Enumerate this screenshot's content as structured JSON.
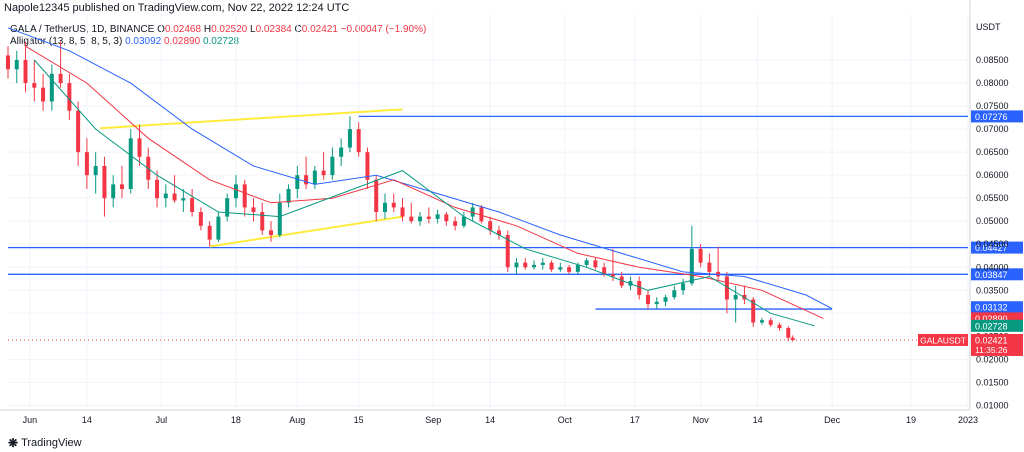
{
  "header": {
    "publisher": "Napole12345 published on TradingView.com, Nov 22, 2022 12:24 UTC"
  },
  "legend": {
    "symbol": "GALA / TetherUS, 1D, BINANCE",
    "o_label": "O",
    "o": "0.02468",
    "h_label": "H",
    "h": "0.02520",
    "l_label": "L",
    "l": "0.02384",
    "c_label": "C",
    "c": "0.02421",
    "change": "−0.00047 (−1.90%)",
    "indicator": "Alligator (13, 8, 5, 8, 5, 3)",
    "jaw": "0.03092",
    "teeth": "0.02890",
    "lips": "0.02728"
  },
  "footer": {
    "brand": "TradingView"
  },
  "chart_data": {
    "type": "candlestick",
    "currency": "USDT",
    "ylim": [
      0.009,
      0.095
    ],
    "y_ticks": [
      "0.08500",
      "0.08000",
      "0.07500",
      "0.07000",
      "0.06500",
      "0.06000",
      "0.05500",
      "0.05000",
      "0.04500",
      "0.04000",
      "0.03500",
      "0.03000",
      "0.02500",
      "0.02000",
      "0.01500",
      "0.01000"
    ],
    "y_tick_values": [
      0.085,
      0.08,
      0.075,
      0.07,
      0.065,
      0.06,
      0.055,
      0.05,
      0.045,
      0.04,
      0.035,
      0.03,
      0.025,
      0.02,
      0.015,
      0.01
    ],
    "x_ticks": [
      "Jun",
      "14",
      "Jul",
      "18",
      "Aug",
      "15",
      "Sep",
      "14",
      "Oct",
      "17",
      "Nov",
      "14",
      "Dec",
      "19",
      "2023"
    ],
    "x_tick_dates": [
      "2022-06-01",
      "2022-06-14",
      "2022-07-01",
      "2022-07-18",
      "2022-08-01",
      "2022-08-15",
      "2022-09-01",
      "2022-09-14",
      "2022-10-01",
      "2022-10-17",
      "2022-11-01",
      "2022-11-14",
      "2022-12-01",
      "2022-12-19",
      "2023-01-01"
    ],
    "x_range": [
      "2022-05-27",
      "2023-01-01"
    ],
    "horizontal_levels": [
      {
        "price": 0.07276,
        "label": "0.07276",
        "from": "2022-08-15",
        "color": "#2962ff"
      },
      {
        "price": 0.04427,
        "label": "0.04427",
        "from": "2022-05-27",
        "color": "#2962ff"
      },
      {
        "price": 0.03847,
        "label": "0.03847",
        "from": "2022-05-27",
        "color": "#2962ff"
      },
      {
        "price": 0.03092,
        "label": "0.03092",
        "from": "2022-10-08",
        "to": "2022-12-01",
        "color": "#2962ff"
      }
    ],
    "trendlines": [
      {
        "from": [
          "2022-06-17",
          0.0702
        ],
        "to": [
          "2022-08-25",
          0.0743
        ],
        "color": "#ffeb3b"
      },
      {
        "from": [
          "2022-07-12",
          0.0445
        ],
        "to": [
          "2022-08-25",
          0.051
        ],
        "color": "#ffeb3b"
      }
    ],
    "price_labels": [
      {
        "label": "0.03132",
        "price": 0.03132,
        "color": "#2962ff"
      },
      {
        "label": "0.03092",
        "price": 0.03092,
        "color": "#2962ff"
      },
      {
        "label": "0.02890",
        "price": 0.0289,
        "color": "#f23645"
      },
      {
        "label": "0.02728",
        "price": 0.02728,
        "color": "#089981"
      },
      {
        "label": "0.02421",
        "price": 0.02421,
        "color": "#f23645"
      }
    ],
    "last_price_tag": {
      "symbol": "GALAUSDT",
      "price": "0.02421",
      "countdown": "11:35:26"
    },
    "jaw_color": "#2962ff",
    "teeth_color": "#f23645",
    "lips_color": "#089981",
    "up_color": "#089981",
    "down_color": "#f23645",
    "ohlc": [
      [
        "2022-05-27",
        0.086,
        0.088,
        0.081,
        0.083
      ],
      [
        "2022-05-29",
        0.083,
        0.087,
        0.08,
        0.085
      ],
      [
        "2022-05-31",
        0.085,
        0.089,
        0.078,
        0.08
      ],
      [
        "2022-06-02",
        0.08,
        0.085,
        0.076,
        0.079
      ],
      [
        "2022-06-04",
        0.079,
        0.082,
        0.074,
        0.076
      ],
      [
        "2022-06-06",
        0.076,
        0.084,
        0.074,
        0.082
      ],
      [
        "2022-06-08",
        0.082,
        0.089,
        0.079,
        0.08
      ],
      [
        "2022-06-10",
        0.08,
        0.082,
        0.072,
        0.074
      ],
      [
        "2022-06-12",
        0.074,
        0.076,
        0.062,
        0.065
      ],
      [
        "2022-06-14",
        0.065,
        0.068,
        0.057,
        0.06
      ],
      [
        "2022-06-16",
        0.06,
        0.065,
        0.056,
        0.062
      ],
      [
        "2022-06-18",
        0.062,
        0.064,
        0.051,
        0.055
      ],
      [
        "2022-06-20",
        0.055,
        0.06,
        0.053,
        0.058
      ],
      [
        "2022-06-22",
        0.058,
        0.062,
        0.055,
        0.057
      ],
      [
        "2022-06-24",
        0.057,
        0.07,
        0.056,
        0.068
      ],
      [
        "2022-06-26",
        0.068,
        0.071,
        0.062,
        0.064
      ],
      [
        "2022-06-28",
        0.064,
        0.066,
        0.057,
        0.059
      ],
      [
        "2022-06-30",
        0.059,
        0.061,
        0.053,
        0.055
      ],
      [
        "2022-07-02",
        0.055,
        0.058,
        0.053,
        0.056
      ],
      [
        "2022-07-04",
        0.056,
        0.06,
        0.054,
        0.0545
      ],
      [
        "2022-07-06",
        0.0545,
        0.057,
        0.052,
        0.055
      ],
      [
        "2022-07-08",
        0.055,
        0.057,
        0.051,
        0.052
      ],
      [
        "2022-07-10",
        0.052,
        0.053,
        0.048,
        0.049
      ],
      [
        "2022-07-12",
        0.049,
        0.05,
        0.0445,
        0.046
      ],
      [
        "2022-07-14",
        0.046,
        0.052,
        0.0455,
        0.051
      ],
      [
        "2022-07-16",
        0.051,
        0.056,
        0.05,
        0.055
      ],
      [
        "2022-07-18",
        0.055,
        0.06,
        0.053,
        0.058
      ],
      [
        "2022-07-20",
        0.058,
        0.059,
        0.051,
        0.053
      ],
      [
        "2022-07-22",
        0.053,
        0.055,
        0.05,
        0.052
      ],
      [
        "2022-07-24",
        0.052,
        0.054,
        0.047,
        0.048
      ],
      [
        "2022-07-26",
        0.048,
        0.05,
        0.0455,
        0.047
      ],
      [
        "2022-07-28",
        0.047,
        0.056,
        0.0465,
        0.054
      ],
      [
        "2022-07-30",
        0.054,
        0.058,
        0.053,
        0.057
      ],
      [
        "2022-08-01",
        0.057,
        0.062,
        0.055,
        0.06
      ],
      [
        "2022-08-03",
        0.06,
        0.064,
        0.057,
        0.058
      ],
      [
        "2022-08-05",
        0.058,
        0.062,
        0.057,
        0.061
      ],
      [
        "2022-08-07",
        0.061,
        0.065,
        0.059,
        0.06
      ],
      [
        "2022-08-09",
        0.06,
        0.066,
        0.059,
        0.064
      ],
      [
        "2022-08-11",
        0.064,
        0.068,
        0.062,
        0.066
      ],
      [
        "2022-08-13",
        0.066,
        0.0728,
        0.065,
        0.07
      ],
      [
        "2022-08-15",
        0.07,
        0.0715,
        0.064,
        0.065
      ],
      [
        "2022-08-17",
        0.065,
        0.066,
        0.057,
        0.059
      ],
      [
        "2022-08-19",
        0.059,
        0.06,
        0.05,
        0.052
      ],
      [
        "2022-08-21",
        0.052,
        0.056,
        0.0505,
        0.054
      ],
      [
        "2022-08-23",
        0.054,
        0.056,
        0.052,
        0.053
      ],
      [
        "2022-08-25",
        0.053,
        0.055,
        0.05,
        0.051
      ],
      [
        "2022-08-27",
        0.051,
        0.054,
        0.0495,
        0.05
      ],
      [
        "2022-08-29",
        0.05,
        0.052,
        0.049,
        0.051
      ],
      [
        "2022-08-31",
        0.051,
        0.053,
        0.0495,
        0.0505
      ],
      [
        "2022-09-02",
        0.0505,
        0.0525,
        0.0495,
        0.0515
      ],
      [
        "2022-09-04",
        0.0515,
        0.052,
        0.049,
        0.05
      ],
      [
        "2022-09-06",
        0.05,
        0.051,
        0.048,
        0.049
      ],
      [
        "2022-09-08",
        0.049,
        0.052,
        0.0485,
        0.051
      ],
      [
        "2022-09-10",
        0.051,
        0.054,
        0.05,
        0.053
      ],
      [
        "2022-09-12",
        0.053,
        0.0535,
        0.0495,
        0.05
      ],
      [
        "2022-09-14",
        0.05,
        0.051,
        0.047,
        0.048
      ],
      [
        "2022-09-16",
        0.048,
        0.049,
        0.046,
        0.047
      ],
      [
        "2022-09-18",
        0.047,
        0.048,
        0.039,
        0.04
      ],
      [
        "2022-09-20",
        0.04,
        0.042,
        0.0385,
        0.041
      ],
      [
        "2022-09-22",
        0.041,
        0.042,
        0.0395,
        0.04
      ],
      [
        "2022-09-24",
        0.04,
        0.0415,
        0.0395,
        0.0405
      ],
      [
        "2022-09-26",
        0.0405,
        0.042,
        0.0395,
        0.041
      ],
      [
        "2022-09-28",
        0.041,
        0.0415,
        0.039,
        0.0395
      ],
      [
        "2022-09-30",
        0.0395,
        0.041,
        0.039,
        0.04
      ],
      [
        "2022-10-02",
        0.04,
        0.0405,
        0.0385,
        0.039
      ],
      [
        "2022-10-04",
        0.039,
        0.041,
        0.0385,
        0.0405
      ],
      [
        "2022-10-06",
        0.0405,
        0.042,
        0.04,
        0.0415
      ],
      [
        "2022-10-08",
        0.0415,
        0.042,
        0.0395,
        0.04
      ],
      [
        "2022-10-10",
        0.04,
        0.041,
        0.038,
        0.0385
      ],
      [
        "2022-10-12",
        0.0385,
        0.044,
        0.037,
        0.038
      ],
      [
        "2022-10-14",
        0.038,
        0.039,
        0.0355,
        0.036
      ],
      [
        "2022-10-16",
        0.036,
        0.038,
        0.035,
        0.037
      ],
      [
        "2022-10-18",
        0.037,
        0.038,
        0.033,
        0.034
      ],
      [
        "2022-10-20",
        0.034,
        0.035,
        0.031,
        0.032
      ],
      [
        "2022-10-22",
        0.032,
        0.0335,
        0.031,
        0.0325
      ],
      [
        "2022-10-24",
        0.0325,
        0.034,
        0.0315,
        0.0335
      ],
      [
        "2022-10-26",
        0.0335,
        0.036,
        0.033,
        0.035
      ],
      [
        "2022-10-28",
        0.035,
        0.0375,
        0.034,
        0.0365
      ],
      [
        "2022-10-30",
        0.0365,
        0.049,
        0.036,
        0.044
      ],
      [
        "2022-11-01",
        0.044,
        0.045,
        0.04,
        0.041
      ],
      [
        "2022-11-03",
        0.041,
        0.043,
        0.038,
        0.039
      ],
      [
        "2022-11-05",
        0.039,
        0.0445,
        0.037,
        0.038
      ],
      [
        "2022-11-07",
        0.038,
        0.039,
        0.03,
        0.033
      ],
      [
        "2022-11-09",
        0.033,
        0.036,
        0.028,
        0.034
      ],
      [
        "2022-11-11",
        0.034,
        0.036,
        0.032,
        0.033
      ],
      [
        "2022-11-13",
        0.033,
        0.0335,
        0.027,
        0.028
      ],
      [
        "2022-11-15",
        0.028,
        0.029,
        0.0275,
        0.0285
      ],
      [
        "2022-11-17",
        0.0285,
        0.029,
        0.027,
        0.0275
      ],
      [
        "2022-11-19",
        0.0275,
        0.028,
        0.0262,
        0.0268
      ],
      [
        "2022-11-21",
        0.0268,
        0.0272,
        0.024,
        0.0247
      ],
      [
        "2022-11-22",
        0.02468,
        0.0252,
        0.02384,
        0.02421
      ]
    ],
    "jaw": [
      [
        "2022-05-27",
        0.092
      ],
      [
        "2022-06-10",
        0.087
      ],
      [
        "2022-06-24",
        0.08
      ],
      [
        "2022-07-08",
        0.07
      ],
      [
        "2022-07-22",
        0.062
      ],
      [
        "2022-08-05",
        0.058
      ],
      [
        "2022-08-19",
        0.06
      ],
      [
        "2022-09-02",
        0.056
      ],
      [
        "2022-09-16",
        0.052
      ],
      [
        "2022-09-30",
        0.047
      ],
      [
        "2022-10-14",
        0.043
      ],
      [
        "2022-10-28",
        0.039
      ],
      [
        "2022-11-11",
        0.038
      ],
      [
        "2022-11-25",
        0.034
      ],
      [
        "2022-12-01",
        0.031
      ]
    ],
    "teeth": [
      [
        "2022-05-31",
        0.088
      ],
      [
        "2022-06-14",
        0.08
      ],
      [
        "2022-06-28",
        0.068
      ],
      [
        "2022-07-12",
        0.059
      ],
      [
        "2022-07-26",
        0.054
      ],
      [
        "2022-08-09",
        0.055
      ],
      [
        "2022-08-23",
        0.059
      ],
      [
        "2022-09-06",
        0.053
      ],
      [
        "2022-09-20",
        0.049
      ],
      [
        "2022-10-04",
        0.043
      ],
      [
        "2022-10-18",
        0.04
      ],
      [
        "2022-11-01",
        0.038
      ],
      [
        "2022-11-15",
        0.035
      ],
      [
        "2022-11-29",
        0.0289
      ]
    ],
    "lips": [
      [
        "2022-06-02",
        0.085
      ],
      [
        "2022-06-16",
        0.07
      ],
      [
        "2022-06-30",
        0.06
      ],
      [
        "2022-07-14",
        0.052
      ],
      [
        "2022-07-28",
        0.051
      ],
      [
        "2022-08-11",
        0.056
      ],
      [
        "2022-08-25",
        0.061
      ],
      [
        "2022-09-08",
        0.051
      ],
      [
        "2022-09-22",
        0.044
      ],
      [
        "2022-10-06",
        0.04
      ],
      [
        "2022-10-20",
        0.035
      ],
      [
        "2022-11-03",
        0.038
      ],
      [
        "2022-11-17",
        0.03
      ],
      [
        "2022-11-27",
        0.02728
      ]
    ]
  }
}
